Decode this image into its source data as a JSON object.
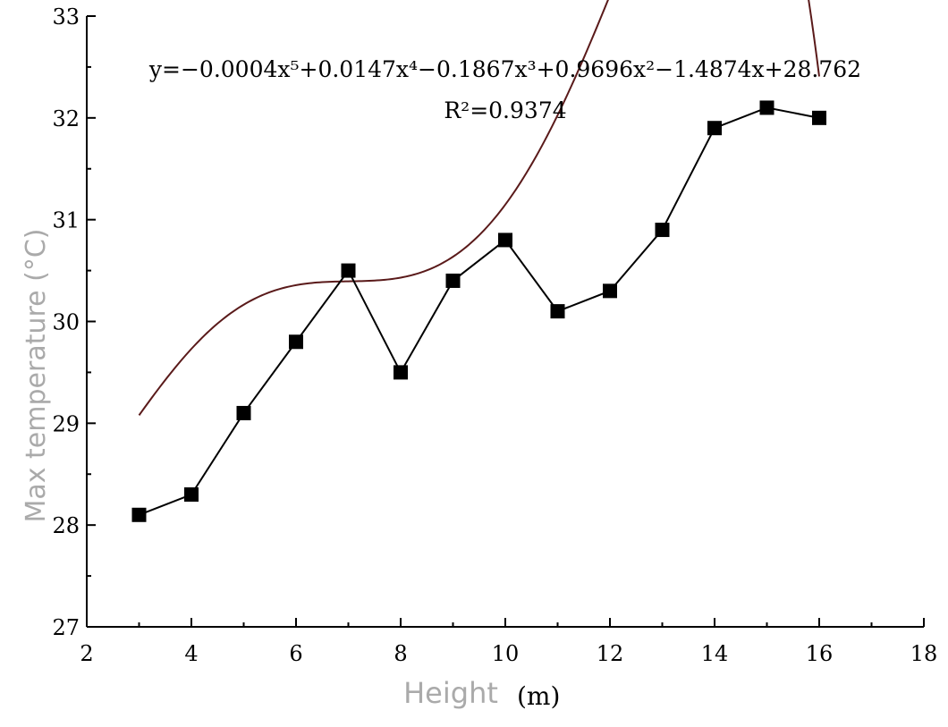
{
  "chart_data": {
    "type": "line",
    "xlabel": "Height",
    "xunit": "(m)",
    "ylabel": "Max temperature (°C)",
    "xlim": [
      2,
      18
    ],
    "ylim": [
      27,
      33
    ],
    "xticks": [
      2,
      4,
      6,
      8,
      10,
      12,
      14,
      16,
      18
    ],
    "yticks": [
      27,
      28,
      29,
      30,
      31,
      32,
      33
    ],
    "grid": false,
    "series": [
      {
        "style": "line-with-square-markers",
        "color": "#000000",
        "x": [
          3,
          4,
          5,
          6,
          7,
          8,
          9,
          10,
          11,
          12,
          13,
          14,
          15,
          16
        ],
        "y": [
          28.1,
          28.3,
          29.1,
          29.8,
          30.5,
          29.5,
          30.4,
          30.8,
          30.1,
          30.3,
          30.9,
          31.9,
          32.1,
          32.0
        ]
      },
      {
        "style": "polynomial-fit",
        "color": "#5a1a1a",
        "coefficients": [
          28.762,
          -1.4874,
          0.9696,
          -0.1867,
          0.0147,
          -0.0004
        ],
        "x_range": [
          3,
          16
        ]
      }
    ],
    "annotations": {
      "equation": "y=−0.0004x⁵+0.0147x⁴−0.1867x³+0.9696x²−1.4874x+28.762",
      "r_squared": "R²=0.9374"
    }
  }
}
